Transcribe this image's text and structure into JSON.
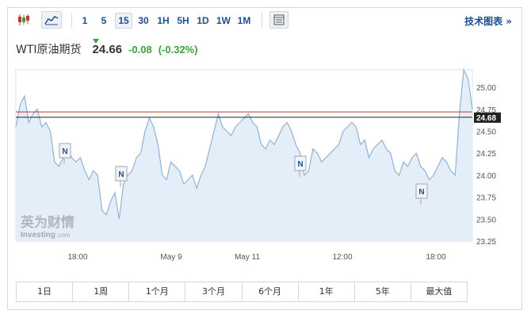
{
  "toolbar": {
    "intervals": [
      "1",
      "5",
      "15",
      "30",
      "1H",
      "5H",
      "1D",
      "1W",
      "1M"
    ],
    "active_interval": "15",
    "tech_chart_label": "技术图表 »"
  },
  "instrument": {
    "name": "WTI原油期货",
    "price": "24.66",
    "change": "-0.08",
    "change_pct": "(-0.32%)"
  },
  "watermark": {
    "cn": "英为财情",
    "en": "Investing",
    "suffix": ".com"
  },
  "current_price_label": "24.68",
  "markers": [
    "N",
    "N",
    "N",
    "N"
  ],
  "colors": {
    "accent": "#1f4e8c",
    "up_down": "#3aa23a",
    "line": "#8fb3d6",
    "area": "#e4eef8",
    "ref_line": "#c0392b"
  },
  "timeframes": [
    "1日",
    "1周",
    "1个月",
    "3个月",
    "6个月",
    "1年",
    "5年",
    "最大值"
  ],
  "chart_data": {
    "type": "area",
    "xlabels": [
      "18:00",
      "May 9",
      "May 11",
      "12:00",
      "18:00"
    ],
    "ylabels": [
      "25.00",
      "24.75",
      "24.50",
      "24.25",
      "24.00",
      "23.75",
      "23.50",
      "23.25"
    ],
    "ylim": [
      23.25,
      25.2
    ],
    "reference_lines": [
      24.72,
      24.66
    ],
    "values": [
      24.55,
      24.8,
      24.9,
      24.6,
      24.7,
      24.75,
      24.55,
      24.6,
      24.5,
      24.15,
      24.1,
      24.2,
      24.3,
      24.2,
      24.15,
      24.2,
      24.05,
      23.95,
      24.05,
      24.0,
      23.6,
      23.55,
      23.7,
      23.8,
      23.5,
      23.9,
      24.0,
      24.05,
      24.2,
      24.25,
      24.5,
      24.65,
      24.55,
      24.35,
      24.0,
      23.95,
      24.15,
      24.1,
      24.05,
      23.9,
      23.95,
      24.0,
      23.85,
      24.0,
      24.1,
      24.3,
      24.5,
      24.7,
      24.55,
      24.5,
      24.45,
      24.55,
      24.6,
      24.65,
      24.7,
      24.6,
      24.55,
      24.35,
      24.3,
      24.4,
      24.35,
      24.45,
      24.55,
      24.6,
      24.5,
      24.35,
      24.25,
      24.0,
      24.05,
      24.3,
      24.25,
      24.15,
      24.2,
      24.25,
      24.3,
      24.35,
      24.5,
      24.55,
      24.6,
      24.55,
      24.35,
      24.4,
      24.2,
      24.3,
      24.35,
      24.4,
      24.3,
      24.25,
      24.05,
      24.0,
      24.15,
      24.1,
      24.2,
      24.25,
      24.1,
      24.05,
      23.95,
      24.0,
      24.1,
      24.2,
      24.15,
      24.05,
      24.0,
      24.7,
      25.2,
      25.1,
      24.75
    ]
  }
}
